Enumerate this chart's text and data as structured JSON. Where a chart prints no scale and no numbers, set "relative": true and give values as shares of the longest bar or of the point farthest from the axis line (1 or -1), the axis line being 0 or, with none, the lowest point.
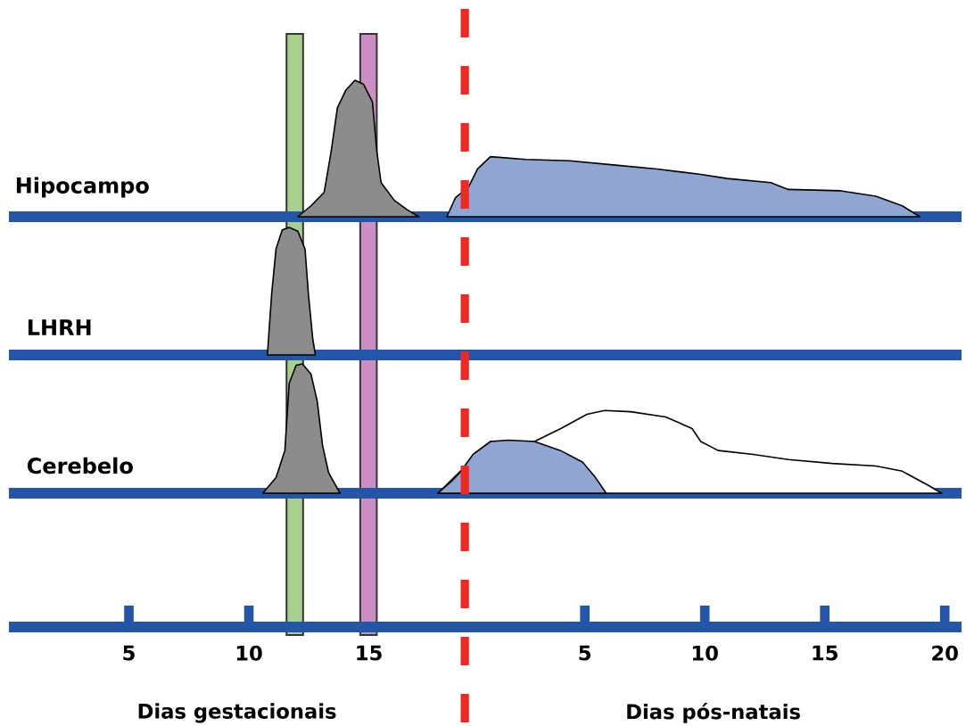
{
  "chart_data": [
    {
      "type": "area",
      "title": "Hipocampo",
      "relative": true,
      "xlim": [
        0,
        39.7
      ],
      "tick_labels": false,
      "series": [
        {
          "color": "#8c8c8c",
          "x": [
            12.04,
            12.59,
            13.14,
            13.43,
            13.69,
            14.05,
            14.42,
            14.78,
            15.15,
            15.33,
            15.51,
            16.06,
            16.61,
            17.08
          ],
          "values": [
            0,
            0.08,
            0.18,
            0.48,
            0.8,
            0.93,
            1.0,
            0.97,
            0.84,
            0.48,
            0.25,
            0.12,
            0.05,
            0
          ]
        },
        {
          "color": "#8fa6d2",
          "x": [
            18.25,
            18.61,
            19.16,
            19.53,
            20.07,
            21.53,
            23.36,
            25.18,
            27.01,
            28.83,
            29.93,
            31.75,
            32.48,
            34.67,
            36.13,
            37.23,
            37.96
          ],
          "values": [
            0,
            0.14,
            0.22,
            0.35,
            0.44,
            0.42,
            0.41,
            0.38,
            0.35,
            0.31,
            0.28,
            0.25,
            0.2,
            0.19,
            0.15,
            0.08,
            0
          ]
        }
      ]
    },
    {
      "type": "area",
      "title": "LHRH",
      "relative": true,
      "xlim": [
        0,
        39.7
      ],
      "tick_labels": false,
      "series": [
        {
          "color": "#8c8c8c",
          "x": [
            10.77,
            10.95,
            11.13,
            11.39,
            11.68,
            12.04,
            12.34,
            12.48,
            12.66,
            12.77
          ],
          "values": [
            0,
            0.48,
            0.83,
            0.98,
            1.0,
            0.97,
            0.83,
            0.48,
            0.13,
            0
          ]
        }
      ]
    },
    {
      "type": "area",
      "title": "Cerebelo",
      "relative": true,
      "xlim": [
        0,
        39.7
      ],
      "xticks": [
        5,
        10,
        15
      ],
      "x2lim": [
        -19,
        20.7
      ],
      "x2ticks": [
        5,
        10,
        15,
        20
      ],
      "bands": [
        {
          "axis": "x",
          "from": 11.57,
          "to": 12.26,
          "color": "#a8d08d"
        },
        {
          "axis": "x",
          "from": 14.64,
          "to": 15.33,
          "color": "#cc8fc4"
        }
      ],
      "ref_lines": [
        {
          "axis": "x",
          "value": 19,
          "color": "#ee2a24",
          "line_style": "dashed"
        }
      ],
      "annotations": [
        "Dias gestacionais",
        "Dias pós-natais"
      ],
      "series": [
        {
          "color": "#ffffff",
          "x": [
            17.88,
            20.07,
            21.9,
            23.0,
            24.09,
            24.82,
            25.91,
            27.37,
            28.47,
            28.83,
            29.56,
            31.02,
            32.48,
            34.31,
            36.13,
            37.23,
            38.32,
            38.87
          ],
          "values": [
            0,
            0.4,
            0.4,
            0.5,
            0.61,
            0.64,
            0.63,
            0.59,
            0.5,
            0.4,
            0.33,
            0.3,
            0.26,
            0.23,
            0.21,
            0.17,
            0.06,
            0
          ]
        },
        {
          "color": "#8c8c8c",
          "x": [
            10.58,
            11.13,
            11.5,
            11.68,
            11.97,
            12.23,
            12.59,
            12.85,
            13.07,
            13.32,
            13.8
          ],
          "values": [
            0,
            0.12,
            0.33,
            0.85,
            0.99,
            1.0,
            0.92,
            0.71,
            0.37,
            0.16,
            0
          ]
        },
        {
          "color": "#8fa6d2",
          "x": [
            17.88,
            18.43,
            18.8,
            19.34,
            20.07,
            20.8,
            21.9,
            22.99,
            23.91,
            24.45,
            24.89
          ],
          "values": [
            0,
            0.09,
            0.16,
            0.3,
            0.4,
            0.41,
            0.4,
            0.33,
            0.24,
            0.12,
            0
          ]
        }
      ]
    }
  ]
}
